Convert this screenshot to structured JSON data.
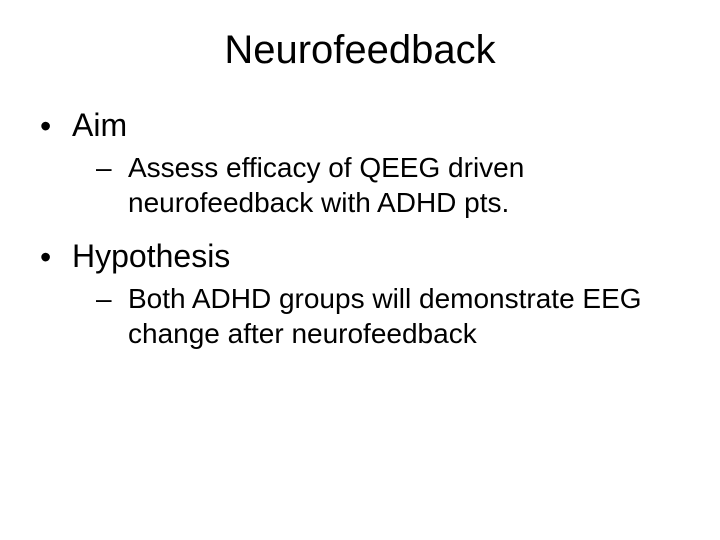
{
  "slide": {
    "title": "Neurofeedback",
    "title_fontsize": 40,
    "background_color": "#ffffff",
    "text_color": "#000000",
    "font_family": "Arial",
    "bullets": [
      {
        "label": "Aim",
        "fontsize": 32,
        "sub": [
          {
            "text": "Assess efficacy of QEEG driven neurofeedback with ADHD pts.",
            "fontsize": 28
          }
        ]
      },
      {
        "label": "Hypothesis",
        "fontsize": 32,
        "sub": [
          {
            "text": "Both ADHD groups will demonstrate EEG change after neurofeedback",
            "fontsize": 28
          }
        ]
      }
    ]
  }
}
